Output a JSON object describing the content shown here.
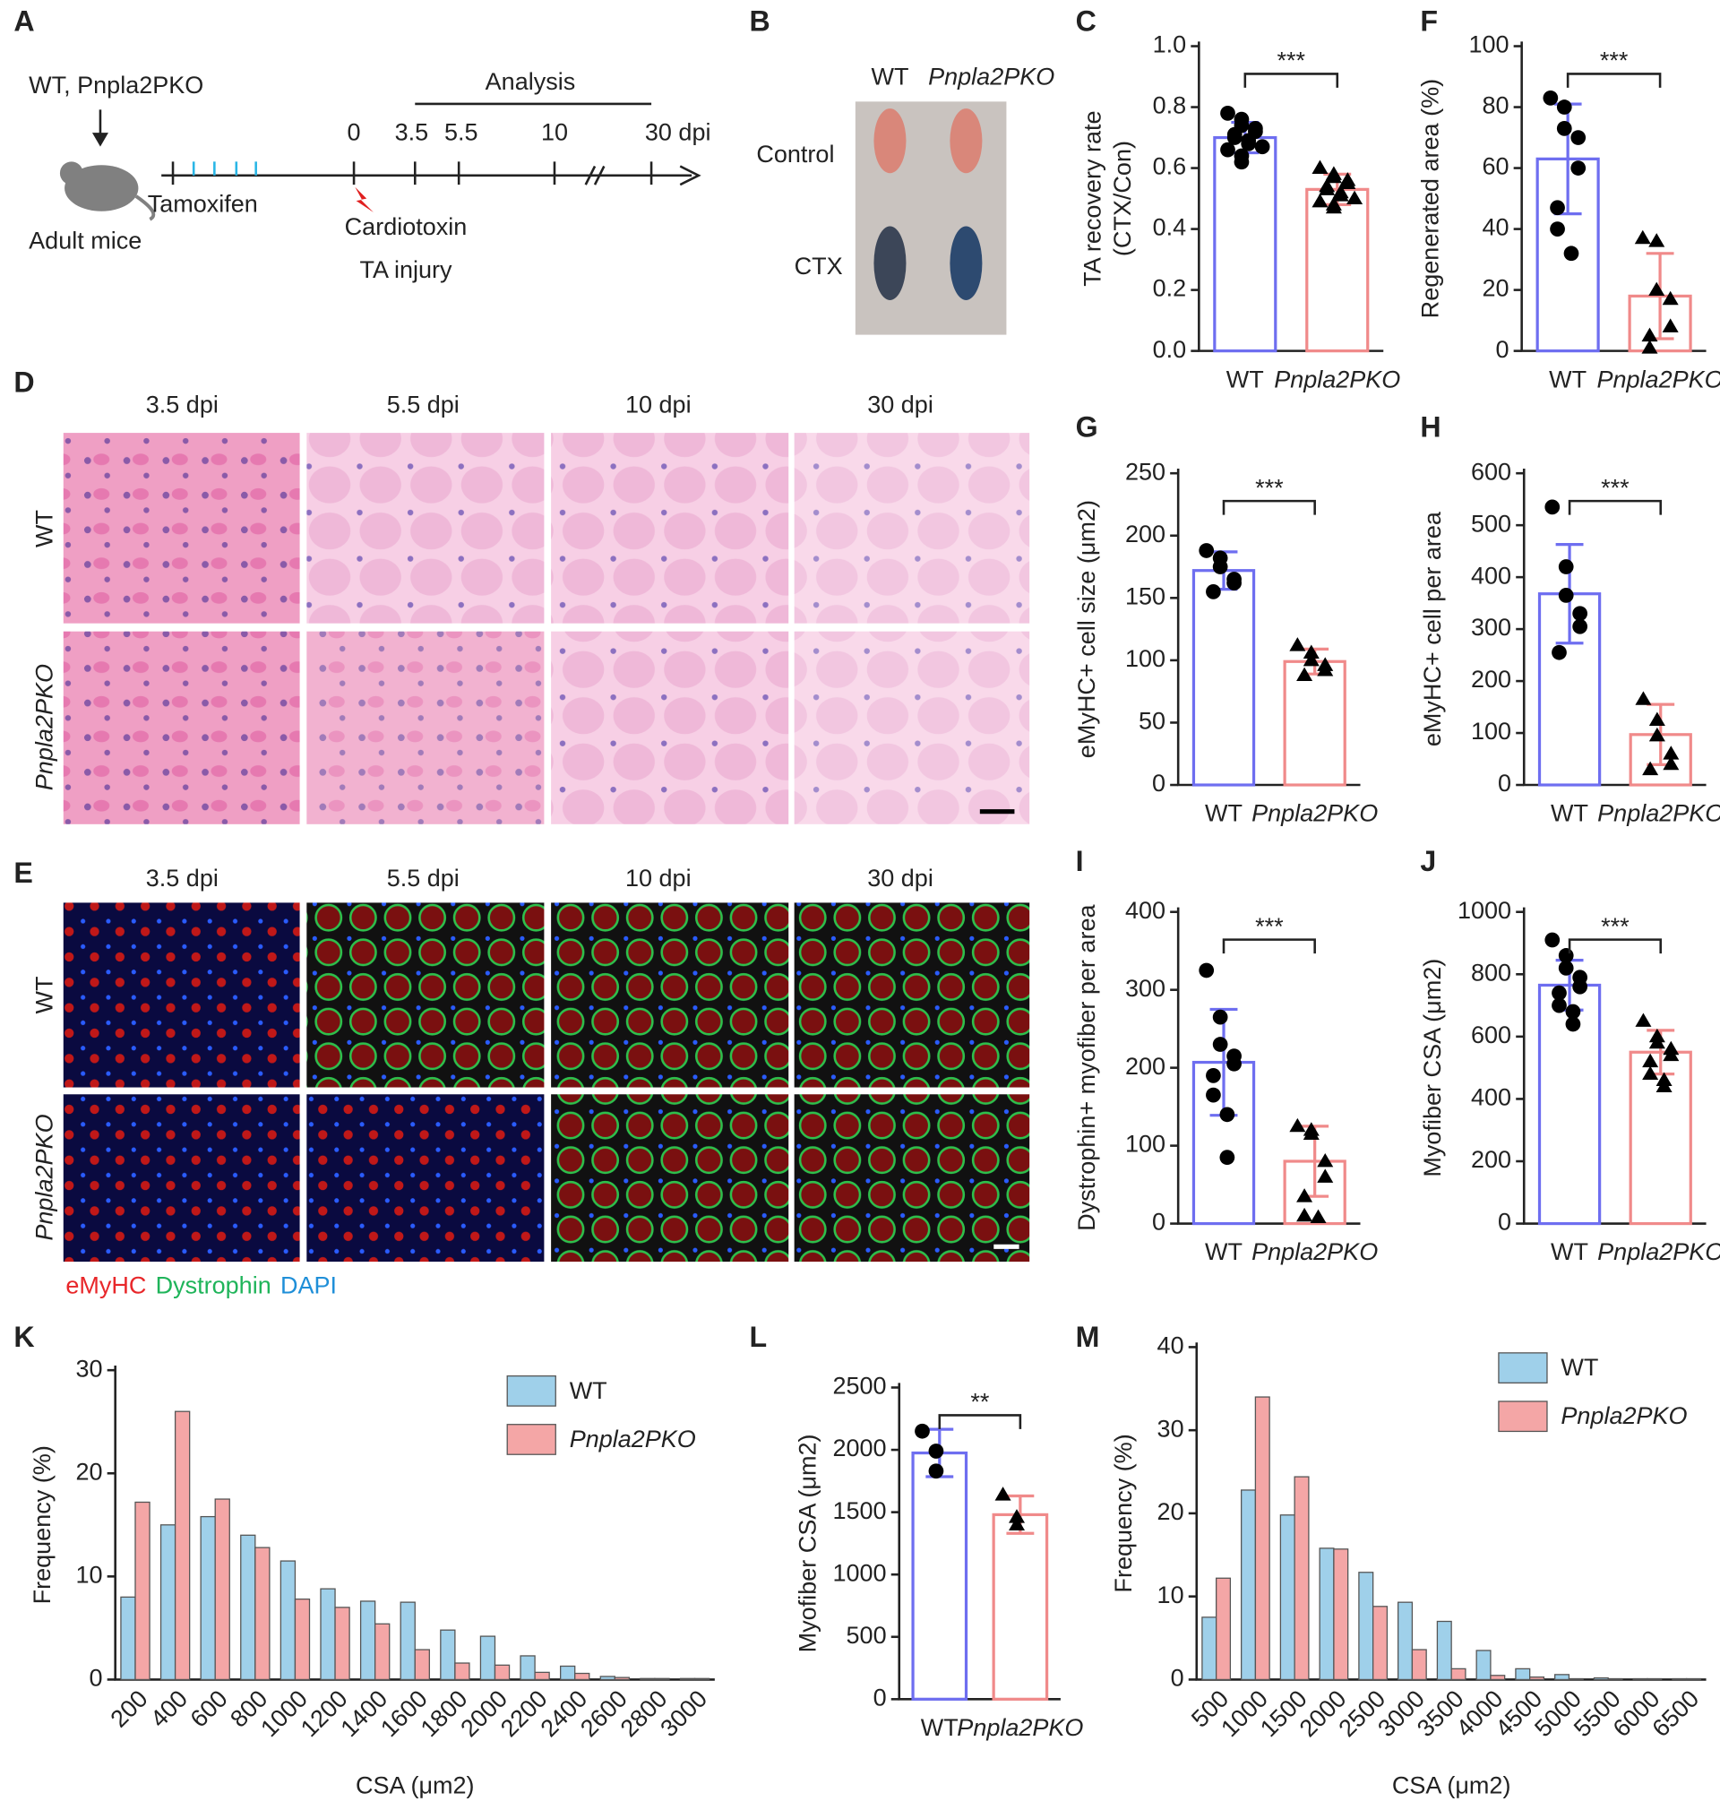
{
  "timeline": {
    "label": "A",
    "genotype": "WT, Pnpla2PKO",
    "subject": "Adult mice",
    "treatment": "Tamoxifen",
    "injury": [
      "Cardiotoxin",
      "TA injury"
    ],
    "phase": "Analysis",
    "points": [
      "0",
      "3.5",
      "5.5",
      "10",
      "30 dpi"
    ]
  },
  "photo": {
    "label": "B",
    "columns": [
      "WT",
      "Pnpla2PKO"
    ],
    "rows": [
      "Control",
      "CTX"
    ]
  },
  "histology": {
    "label": "D",
    "columns": [
      "3.5 dpi",
      "5.5 dpi",
      "10 dpi",
      "30 dpi"
    ],
    "rows": [
      "WT",
      "Pnpla2PKO"
    ]
  },
  "immuno": {
    "label": "E",
    "columns": [
      "3.5 dpi",
      "5.5 dpi",
      "10 dpi",
      "30 dpi"
    ],
    "rows": [
      "WT",
      "Pnpla2PKO"
    ],
    "stains": [
      {
        "name": "eMyHC",
        "color": "#e8272a"
      },
      {
        "name": "Dystrophin",
        "color": "#1fb45a"
      },
      {
        "name": "DAPI",
        "color": "#1f8fd8"
      }
    ]
  },
  "chart_data": [
    {
      "label": "C",
      "type": "bar",
      "ylabel": [
        "TA recovery rate",
        "(CTX/Con)"
      ],
      "categories": [
        "WT",
        "Pnpla2PKO"
      ],
      "values": [
        0.7,
        0.53
      ],
      "errors": [
        0.05,
        0.05
      ],
      "points": [
        [
          0.78,
          0.76,
          0.74,
          0.73,
          0.72,
          0.71,
          0.7,
          0.69,
          0.68,
          0.67,
          0.66,
          0.64,
          0.62
        ],
        [
          0.6,
          0.58,
          0.57,
          0.56,
          0.55,
          0.54,
          0.53,
          0.52,
          0.51,
          0.5,
          0.49,
          0.48,
          0.47
        ]
      ],
      "colors": [
        "#6e6ef0",
        "#f08a8a"
      ],
      "markers": [
        "circle",
        "triangle"
      ],
      "ylim": [
        0,
        1.0
      ],
      "yticks": [
        {
          "value": 0,
          "label": "0.0"
        },
        0.2,
        0.4,
        0.6,
        0.8,
        {
          "value": 1.0,
          "label": "1.0"
        }
      ],
      "significance": "***"
    },
    {
      "label": "F",
      "type": "bar",
      "ylabel": [
        "Regenerated area (%)"
      ],
      "categories": [
        "WT",
        "Pnpla2PKO"
      ],
      "values": [
        63,
        18
      ],
      "errors": [
        18,
        14
      ],
      "points": [
        [
          83,
          80,
          73,
          70,
          60,
          47,
          40,
          32
        ],
        [
          37,
          36,
          20,
          17,
          8,
          5,
          1
        ]
      ],
      "colors": [
        "#6e6ef0",
        "#f08a8a"
      ],
      "markers": [
        "circle",
        "triangle"
      ],
      "ylim": [
        0,
        100
      ],
      "yticks": [
        0,
        20,
        40,
        60,
        80,
        100
      ],
      "significance": "***"
    },
    {
      "label": "G",
      "type": "bar",
      "ylabel": [
        "eMyHC+ cell size (μm2)"
      ],
      "categories": [
        "WT",
        "Pnpla2PKO"
      ],
      "values": [
        172,
        99
      ],
      "errors": [
        15,
        10
      ],
      "points": [
        [
          188,
          182,
          175,
          165,
          162,
          155
        ],
        [
          112,
          106,
          100,
          96,
          92,
          88
        ]
      ],
      "colors": [
        "#6e6ef0",
        "#f08a8a"
      ],
      "markers": [
        "circle",
        "triangle"
      ],
      "ylim": [
        0,
        250
      ],
      "yticks": [
        0,
        50,
        100,
        150,
        200,
        250
      ],
      "significance": "***"
    },
    {
      "label": "H",
      "type": "bar",
      "ylabel": [
        "eMyHC+ cell per area"
      ],
      "categories": [
        "WT",
        "Pnpla2PKO"
      ],
      "values": [
        368,
        97
      ],
      "errors": [
        95,
        58
      ],
      "points": [
        [
          535,
          420,
          365,
          330,
          305,
          255
        ],
        [
          165,
          125,
          95,
          60,
          40,
          30
        ]
      ],
      "colors": [
        "#6e6ef0",
        "#f08a8a"
      ],
      "markers": [
        "circle",
        "triangle"
      ],
      "ylim": [
        0,
        600
      ],
      "yticks": [
        0,
        100,
        200,
        300,
        400,
        500,
        600
      ],
      "significance": "***"
    },
    {
      "label": "I",
      "type": "bar",
      "ylabel": [
        "Dystrophin+ myofiber per area"
      ],
      "categories": [
        "WT",
        "Pnpla2PKO"
      ],
      "values": [
        207,
        80
      ],
      "errors": [
        68,
        45
      ],
      "points": [
        [
          325,
          265,
          230,
          215,
          205,
          190,
          165,
          140,
          85
        ],
        [
          125,
          120,
          115,
          80,
          60,
          35,
          10,
          8
        ]
      ],
      "colors": [
        "#6e6ef0",
        "#f08a8a"
      ],
      "markers": [
        "circle",
        "triangle"
      ],
      "ylim": [
        0,
        400
      ],
      "yticks": [
        0,
        100,
        200,
        300,
        400
      ],
      "significance": "***"
    },
    {
      "label": "J",
      "type": "bar",
      "ylabel": [
        "Myofiber CSA (μm2)"
      ],
      "categories": [
        "WT",
        "Pnpla2PKO"
      ],
      "values": [
        765,
        550
      ],
      "errors": [
        80,
        70
      ],
      "points": [
        [
          910,
          860,
          820,
          790,
          760,
          740,
          700,
          680,
          640
        ],
        [
          650,
          600,
          580,
          560,
          540,
          520,
          480,
          460,
          440
        ]
      ],
      "colors": [
        "#6e6ef0",
        "#f08a8a"
      ],
      "markers": [
        "circle",
        "triangle"
      ],
      "ylim": [
        0,
        1000
      ],
      "yticks": [
        0,
        200,
        400,
        600,
        800,
        1000
      ],
      "significance": "***"
    },
    {
      "label": "K",
      "type": "groupedbar",
      "ylabel": "Frequency (%)",
      "xlabel": "CSA (μm2)",
      "categories": [
        "200",
        "400",
        "600",
        "800",
        "1000",
        "1200",
        "1400",
        "1600",
        "1800",
        "2000",
        "2200",
        "2400",
        "2600",
        "2800",
        "3000"
      ],
      "series": [
        {
          "name": "WT",
          "color": "#9fd0ea",
          "values": [
            8,
            15,
            15.8,
            14,
            11.5,
            8.8,
            7.6,
            7.5,
            4.8,
            4.2,
            2.3,
            1.3,
            0.3,
            0.1,
            0.1
          ]
        },
        {
          "name": "Pnpla2PKO",
          "color": "#f4a6a6",
          "values": [
            17.2,
            26,
            17.5,
            12.8,
            7.8,
            7,
            5.4,
            2.9,
            1.6,
            1.4,
            0.7,
            0.6,
            0.2,
            0.1,
            0.1
          ]
        }
      ],
      "ylim": [
        0,
        30
      ],
      "yticks": [
        0,
        10,
        20,
        30
      ],
      "legend": "top-right"
    },
    {
      "label": "L",
      "type": "bar",
      "ylabel": [
        "Myofiber CSA (μm2)"
      ],
      "categories": [
        "WT",
        "Pnpla2PKO"
      ],
      "values": [
        1975,
        1480
      ],
      "errors": [
        190,
        150
      ],
      "points": [
        [
          2150,
          1990,
          1830
        ],
        [
          1640,
          1460,
          1400
        ]
      ],
      "colors": [
        "#6e6ef0",
        "#f08a8a"
      ],
      "markers": [
        "circle",
        "triangle"
      ],
      "ylim": [
        0,
        2500
      ],
      "yticks": [
        0,
        500,
        1000,
        1500,
        2000,
        2500
      ],
      "significance": "**"
    },
    {
      "label": "M",
      "type": "groupedbar",
      "ylabel": "Frequency (%)",
      "xlabel": "CSA (μm2)",
      "categories": [
        "500",
        "1000",
        "1500",
        "2000",
        "2500",
        "3000",
        "3500",
        "4000",
        "4500",
        "5000",
        "5500",
        "6000",
        "6500"
      ],
      "series": [
        {
          "name": "WT",
          "color": "#9fd0ea",
          "values": [
            7.5,
            22.8,
            19.8,
            15.8,
            12.9,
            9.3,
            7.0,
            3.5,
            1.3,
            0.6,
            0.2,
            0.1,
            0.1
          ]
        },
        {
          "name": "Pnpla2PKO",
          "color": "#f4a6a6",
          "values": [
            12.2,
            34,
            24.4,
            15.7,
            8.8,
            3.6,
            1.3,
            0.5,
            0.3,
            0.1,
            0.1,
            0.1,
            0.1
          ]
        }
      ],
      "ylim": [
        0,
        40
      ],
      "yticks": [
        0,
        10,
        20,
        30,
        40
      ],
      "legend": "top-right"
    }
  ]
}
